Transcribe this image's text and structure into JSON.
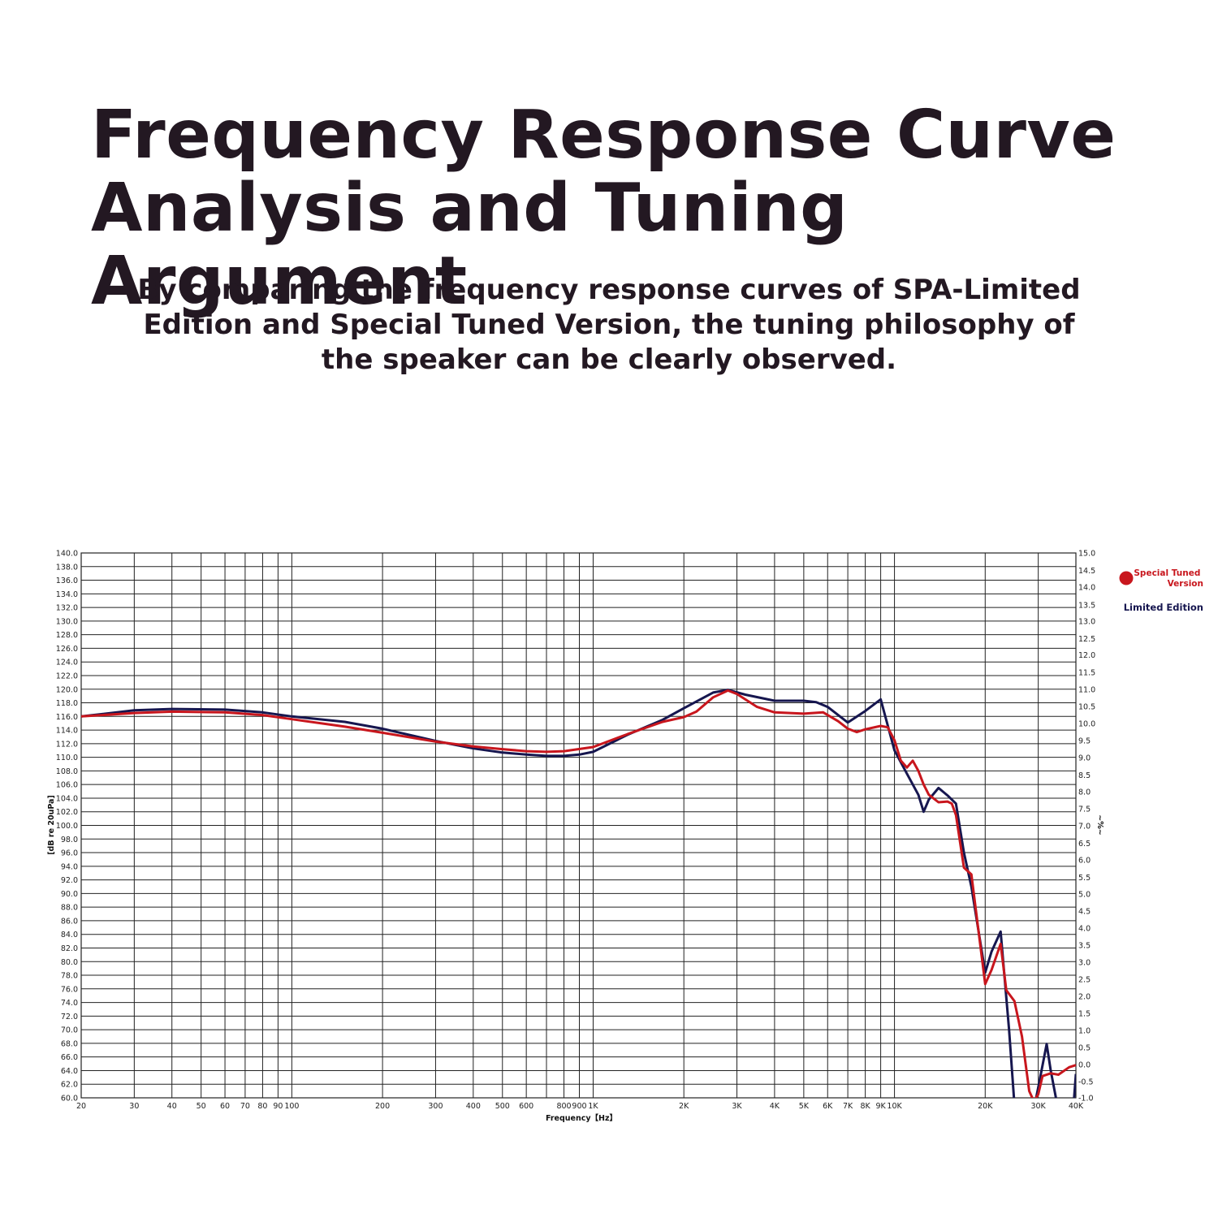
{
  "header": {
    "title": "Frequency Response Curve\nAnalysis and Tuning Argument",
    "subtitle": "By comparing the frequency response curves of SPA-Limited Edition and Special Tuned Version, the tuning philosophy of the speaker can be clearly observed."
  },
  "colors": {
    "special_tuned": "#c8161d",
    "limited_edition": "#16164f",
    "grid": "#222222"
  },
  "chart_data": {
    "type": "line",
    "xlabel": "Frequency【Hz】",
    "ylabel": "[dB re 20uPa]",
    "ylabel_right": "~%~",
    "x_scale": "log",
    "xlim": [
      20,
      40000
    ],
    "x_ticks": [
      {
        "v": 20,
        "label": "20"
      },
      {
        "v": 30,
        "label": "30"
      },
      {
        "v": 40,
        "label": "40"
      },
      {
        "v": 50,
        "label": "50"
      },
      {
        "v": 60,
        "label": "60"
      },
      {
        "v": 70,
        "label": "70"
      },
      {
        "v": 80,
        "label": "80"
      },
      {
        "v": 90,
        "label": "90"
      },
      {
        "v": 100,
        "label": "100"
      },
      {
        "v": 200,
        "label": "200"
      },
      {
        "v": 300,
        "label": "300"
      },
      {
        "v": 400,
        "label": "400"
      },
      {
        "v": 500,
        "label": "500"
      },
      {
        "v": 600,
        "label": "600"
      },
      {
        "v": 800,
        "label": "800"
      },
      {
        "v": 900,
        "label": "900"
      },
      {
        "v": 1000,
        "label": "1K"
      },
      {
        "v": 2000,
        "label": "2K"
      },
      {
        "v": 3000,
        "label": "3K"
      },
      {
        "v": 4000,
        "label": "4K"
      },
      {
        "v": 5000,
        "label": "5K"
      },
      {
        "v": 6000,
        "label": "6K"
      },
      {
        "v": 7000,
        "label": "7K"
      },
      {
        "v": 8000,
        "label": "8K"
      },
      {
        "v": 9000,
        "label": "9K"
      },
      {
        "v": 10000,
        "label": "10K"
      },
      {
        "v": 20000,
        "label": "20K"
      },
      {
        "v": 30000,
        "label": "30K"
      },
      {
        "v": 40000,
        "label": "40K"
      }
    ],
    "extra_vlines": [
      700
    ],
    "y_left_labels": [
      "140.0",
      "138.0",
      "136.0",
      "134.0",
      "132.0",
      "130.0",
      "128.0",
      "126.0",
      "124.0",
      "122.0",
      "120.0",
      "118.0",
      "116.0",
      "114.0",
      "112.0",
      "110.0",
      "108.0",
      "106.0",
      "104.0",
      "102.0",
      "100.0",
      "98.0",
      "96.0",
      "94.0",
      "92.0",
      "90.0",
      "88.0",
      "86.0",
      "84.0",
      "82.0",
      "80.0",
      "78.0",
      "76.0",
      "74.0",
      "72.0",
      "70.0",
      "68.0",
      "66.0",
      "64.0",
      "62.0",
      "60.0"
    ],
    "y_right_labels": [
      "15.0",
      "14.5",
      "14.0",
      "13.5",
      "13.0",
      "12.5",
      "12.0",
      "11.5",
      "11.0",
      "10.5",
      "10.0",
      "9.5",
      "9.0",
      "8.5",
      "8.0",
      "7.5",
      "7.0",
      "6.5",
      "6.0",
      "5.5",
      "5.0",
      "4.5",
      "4.0",
      "3.5",
      "3.0",
      "2.5",
      "2.0",
      "1.5",
      "1.0",
      "0.5",
      "0.0",
      "-0.5",
      "-1.0"
    ],
    "y_right_label_pos": [
      681,
      702.4,
      723.2,
      744.8,
      765.2,
      786.4,
      806.6,
      828.2,
      849,
      870,
      891,
      912,
      932.8,
      954.4,
      975.2,
      996.2,
      1017.2,
      1038.4,
      1059.2,
      1080.4,
      1101.2,
      1122.2,
      1143,
      1164.2,
      1185,
      1206,
      1227.2,
      1248,
      1269,
      1290,
      1311,
      1332,
      1352
    ],
    "series": [
      {
        "name": "Special Tuned Version",
        "color": "#c8161d",
        "points": [
          [
            20,
            116.0
          ],
          [
            30,
            116.5
          ],
          [
            40,
            116.7
          ],
          [
            60,
            116.6
          ],
          [
            80,
            116.2
          ],
          [
            100,
            115.6
          ],
          [
            150,
            114.5
          ],
          [
            200,
            113.6
          ],
          [
            300,
            112.3
          ],
          [
            400,
            111.6
          ],
          [
            500,
            111.2
          ],
          [
            600,
            110.9
          ],
          [
            700,
            110.8
          ],
          [
            800,
            110.9
          ],
          [
            1000,
            111.5
          ],
          [
            1300,
            113.4
          ],
          [
            1700,
            115.2
          ],
          [
            2000,
            115.9
          ],
          [
            2200,
            116.7
          ],
          [
            2500,
            118.8
          ],
          [
            2800,
            119.8
          ],
          [
            3000,
            119.3
          ],
          [
            3500,
            117.4
          ],
          [
            4000,
            116.6
          ],
          [
            5000,
            116.4
          ],
          [
            5800,
            116.6
          ],
          [
            6500,
            115.3
          ],
          [
            7000,
            114.2
          ],
          [
            7500,
            113.7
          ],
          [
            8000,
            114.1
          ],
          [
            9000,
            114.6
          ],
          [
            9500,
            114.4
          ],
          [
            10000,
            112.5
          ],
          [
            10500,
            109.5
          ],
          [
            11000,
            108.5
          ],
          [
            11500,
            109.5
          ],
          [
            12000,
            108.0
          ],
          [
            12500,
            106.0
          ],
          [
            13000,
            104.5
          ],
          [
            14000,
            103.4
          ],
          [
            15000,
            103.5
          ],
          [
            15500,
            103.2
          ],
          [
            16000,
            101.5
          ],
          [
            17000,
            93.8
          ],
          [
            18000,
            92.8
          ],
          [
            20000,
            76.7
          ],
          [
            21000,
            78.8
          ],
          [
            22500,
            82.6
          ],
          [
            23500,
            75.8
          ],
          [
            25000,
            74.2
          ],
          [
            26500,
            69.0
          ],
          [
            28000,
            61.0
          ],
          [
            29000,
            59.5
          ],
          [
            30000,
            60.5
          ],
          [
            31000,
            63.2
          ],
          [
            33000,
            63.6
          ],
          [
            35000,
            63.4
          ],
          [
            38000,
            64.5
          ],
          [
            40000,
            64.8
          ]
        ]
      },
      {
        "name": "Limited Edition",
        "color": "#16164f",
        "points": [
          [
            20,
            116.0
          ],
          [
            30,
            116.9
          ],
          [
            40,
            117.1
          ],
          [
            60,
            117.0
          ],
          [
            80,
            116.6
          ],
          [
            100,
            116.0
          ],
          [
            150,
            115.2
          ],
          [
            200,
            114.2
          ],
          [
            300,
            112.4
          ],
          [
            400,
            111.3
          ],
          [
            500,
            110.7
          ],
          [
            600,
            110.4
          ],
          [
            700,
            110.2
          ],
          [
            800,
            110.2
          ],
          [
            900,
            110.4
          ],
          [
            1000,
            110.8
          ],
          [
            1300,
            113.3
          ],
          [
            1700,
            115.5
          ],
          [
            2000,
            117.2
          ],
          [
            2500,
            119.5
          ],
          [
            2800,
            119.9
          ],
          [
            3200,
            119.2
          ],
          [
            4000,
            118.3
          ],
          [
            5000,
            118.3
          ],
          [
            5500,
            118.1
          ],
          [
            6000,
            117.4
          ],
          [
            7000,
            115.1
          ],
          [
            8000,
            116.8
          ],
          [
            9000,
            118.5
          ],
          [
            10000,
            111.0
          ],
          [
            11000,
            107.6
          ],
          [
            12000,
            104.5
          ],
          [
            12500,
            102.0
          ],
          [
            13000,
            103.8
          ],
          [
            14000,
            105.5
          ],
          [
            15000,
            104.4
          ],
          [
            16000,
            103.2
          ],
          [
            17000,
            96.0
          ],
          [
            18000,
            91.0
          ],
          [
            20000,
            78.4
          ],
          [
            21000,
            81.5
          ],
          [
            22500,
            84.4
          ],
          [
            24000,
            70.0
          ],
          [
            25000,
            59.0
          ],
          [
            26000,
            55.0
          ],
          [
            28000,
            55.0
          ],
          [
            30000,
            61.5
          ],
          [
            32000,
            67.9
          ],
          [
            33000,
            64.0
          ],
          [
            34500,
            59.5
          ],
          [
            36000,
            55.0
          ],
          [
            39000,
            57.0
          ],
          [
            40000,
            63.5
          ]
        ]
      }
    ]
  }
}
